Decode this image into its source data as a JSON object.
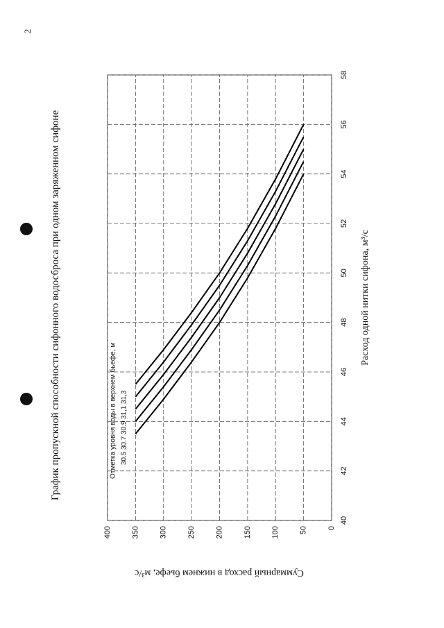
{
  "page_number": "2",
  "chart_data": {
    "type": "line",
    "title": "График пропускной способности сифонного водосброса при одном заряженном сифоне",
    "xlabel": "Расход одной нитки сифона, м³/с",
    "ylabel": "Суммарный расход в нижнем бьефе, м³/с",
    "legend_title": "Отметка уровня воды в верхнем бьефе, м",
    "xlim": [
      40,
      58
    ],
    "xticks": [
      40,
      42,
      44,
      46,
      48,
      50,
      52,
      54,
      56,
      58
    ],
    "ylim": [
      0,
      400
    ],
    "yticks": [
      0,
      50,
      100,
      150,
      200,
      250,
      300,
      350,
      400
    ],
    "grid": true,
    "series": [
      {
        "name": "30.5",
        "color": "#000000",
        "x": [
          43.5,
          44.9,
          46.4,
          48.0,
          49.8,
          51.8,
          54.0
        ],
        "values": [
          350,
          300,
          250,
          200,
          150,
          100,
          50
        ]
      },
      {
        "name": "30.7",
        "color": "#000000",
        "x": [
          44.0,
          45.4,
          46.9,
          48.5,
          50.3,
          52.3,
          54.5
        ],
        "values": [
          350,
          300,
          250,
          200,
          150,
          100,
          50
        ]
      },
      {
        "name": "30.9",
        "color": "#000000",
        "x": [
          44.5,
          45.9,
          47.4,
          49.0,
          50.8,
          52.8,
          55.0
        ],
        "values": [
          350,
          300,
          250,
          200,
          150,
          100,
          50
        ]
      },
      {
        "name": "31,1",
        "color": "#000000",
        "x": [
          45.0,
          46.4,
          47.9,
          49.5,
          51.3,
          53.3,
          55.5
        ],
        "values": [
          350,
          300,
          250,
          200,
          150,
          100,
          50
        ]
      },
      {
        "name": "31,3",
        "color": "#000000",
        "x": [
          45.5,
          46.9,
          48.4,
          50.0,
          51.8,
          53.8,
          56.0
        ],
        "values": [
          350,
          300,
          250,
          200,
          150,
          100,
          50
        ]
      }
    ]
  }
}
